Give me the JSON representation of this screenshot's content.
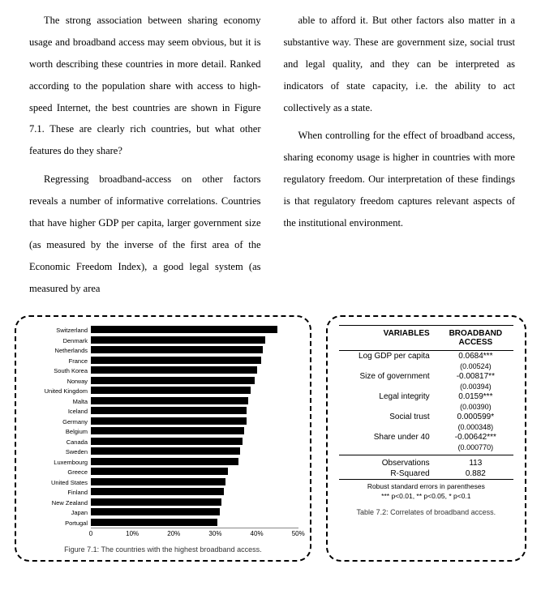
{
  "text": {
    "p1": "The strong association between sharing economy usage and broadband access may seem obvious, but it is worth describing these countries in more detail. Ranked according to the population share with access to high-speed Internet, the best countries are shown in Figure 7.1. These are clearly rich countries, but what other features do they share?",
    "p2": "Regressing broadband-access on other factors reveals a number of informative correlations. Countries that have higher GDP per capita, larger government size (as measured by the inverse of the first area of the Economic Freedom Index), a good legal system (as measured by area",
    "p3": "able to afford it. But other factors also matter in a substantive way. These are government size, social trust and legal quality, and they can be interpreted as indicators of state capacity, i.e. the ability to act collectively as a state.",
    "p4": "When controlling for the effect of broadband access, sharing economy usage is higher in countries with more regulatory freedom. Our interpretation of these findings is that regulatory freedom captures relevant aspects of the institutional environment."
  },
  "chart": {
    "caption": "Figure 7.1: The countries with the highest broadband access.",
    "max": 50,
    "ticks": [
      "0",
      "10%",
      "20%",
      "30%",
      "40%",
      "50%"
    ],
    "countries": [
      {
        "name": "Switzerland",
        "v": 45
      },
      {
        "name": "Denmark",
        "v": 42
      },
      {
        "name": "Netherlands",
        "v": 41.5
      },
      {
        "name": "France",
        "v": 41
      },
      {
        "name": "South Korea",
        "v": 40
      },
      {
        "name": "Norway",
        "v": 39.5
      },
      {
        "name": "United Kingdom",
        "v": 38.5
      },
      {
        "name": "Malta",
        "v": 38
      },
      {
        "name": "Iceland",
        "v": 37.5
      },
      {
        "name": "Germany",
        "v": 37.5
      },
      {
        "name": "Belgium",
        "v": 37
      },
      {
        "name": "Canada",
        "v": 36.5
      },
      {
        "name": "Sweden",
        "v": 36
      },
      {
        "name": "Luxembourg",
        "v": 35.5
      },
      {
        "name": "Greece",
        "v": 33
      },
      {
        "name": "United States",
        "v": 32.5
      },
      {
        "name": "Finland",
        "v": 32
      },
      {
        "name": "New Zealand",
        "v": 31.5
      },
      {
        "name": "Japan",
        "v": 31
      },
      {
        "name": "Portugal",
        "v": 30.5
      }
    ]
  },
  "table": {
    "caption": "Table 7.2: Correlates of broadband access.",
    "h1": "VARIABLES",
    "h2a": "BROADBAND",
    "h2b": "ACCESS",
    "rows": [
      {
        "label": "Log GDP per capita",
        "val": "0.0684***",
        "se": "(0.00524)"
      },
      {
        "label": "Size of government",
        "val": "-0.00817**",
        "se": "(0.00394)"
      },
      {
        "label": "Legal integrity",
        "val": "0.0159***",
        "se": "(0.00390)"
      },
      {
        "label": "Social trust",
        "val": "0.000599*",
        "se": "(0.000348)"
      },
      {
        "label": "Share under 40",
        "val": "-0.00642***",
        "se": "(0.000770)"
      }
    ],
    "obs_l": "Observations",
    "obs_v": "113",
    "r2_l": "R-Squared",
    "r2_v": "0.882",
    "foot1": "Robust standard errors in parentheses",
    "foot2": "*** p<0.01, ** p<0.05, * p<0.1"
  }
}
